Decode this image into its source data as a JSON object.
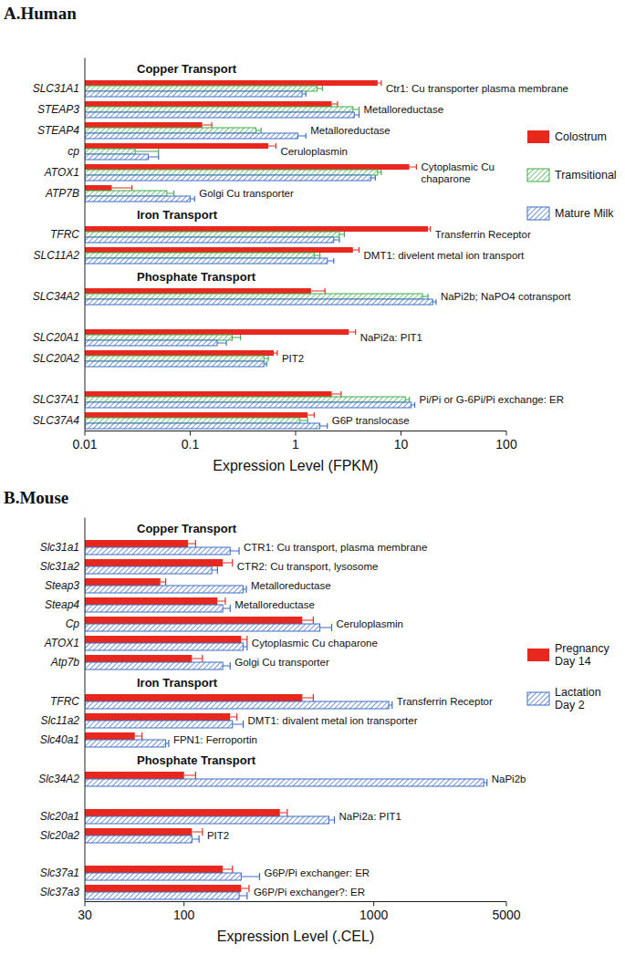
{
  "chart_data": [
    {
      "type": "bar",
      "orientation": "horizontal",
      "log": "x",
      "grid": false,
      "legend": "right",
      "title": "A.Human",
      "x_label": "Expression Level (FPKM)",
      "xlim": [
        0.01,
        100
      ],
      "xticks": [
        0.01,
        0.1,
        1,
        10,
        100
      ],
      "categories": [
        "SLC31A1",
        "STEAP3",
        "STEAP4",
        "cp",
        "ATOX1",
        "ATP7B",
        "TFRC",
        "SLC11A2",
        "SLC34A2",
        "SLC20A1",
        "SLC20A2",
        "SLC37A1",
        "SLC37A4"
      ],
      "descriptions": [
        "Ctr1: Cu transporter plasma membrane",
        "Metalloreductase",
        "Metalloreductase",
        "Ceruloplasmin",
        "Cytoplasmic Cu chaparone",
        "Golgi Cu transporter",
        "Transferrin Receptor",
        "DMT1: divelent metal ion transport",
        "NaPi2b;  NaPO4 cotransport",
        "NaPi2a: PIT1",
        "PIT2",
        "Pi/Pi or G-6Pi/Pi exchange: ER",
        "G6P  translocase"
      ],
      "annotations": [
        {
          "text": "Copper Transport",
          "category": "SLC31A1"
        },
        {
          "text": "Iron Transport",
          "category": "TFRC"
        },
        {
          "text": "Phosphate Transport",
          "category": "SLC34A2"
        }
      ],
      "series": [
        {
          "name": "Colostrum",
          "color": "#e8281e",
          "values": [
            6.0,
            2.2,
            0.13,
            0.55,
            12,
            0.018,
            18,
            3.5,
            1.4,
            3.2,
            0.62,
            2.2,
            1.3
          ],
          "errors": [
            0.5,
            0.3,
            0.03,
            0.1,
            2,
            0.01,
            1,
            0.5,
            0.5,
            0.5,
            0.05,
            0.5,
            0.2
          ]
        },
        {
          "name": "Tramsitional",
          "color": "#3fae49",
          "values": [
            1.6,
            3.5,
            0.42,
            0.03,
            6.0,
            0.06,
            2.6,
            1.5,
            16,
            0.25,
            0.5,
            11,
            1.1
          ],
          "errors": [
            0.2,
            0.5,
            0.05,
            0.02,
            0.5,
            0.01,
            0.3,
            0.2,
            2,
            0.05,
            0.05,
            1,
            0.2
          ]
        },
        {
          "name": "Mature Milk",
          "color": "#3b6cc4",
          "values": [
            1.15,
            3.6,
            1.05,
            0.04,
            5.2,
            0.1,
            2.3,
            2.0,
            20,
            0.18,
            0.5,
            12.5,
            1.7
          ],
          "errors": [
            0.1,
            0.4,
            0.2,
            0.01,
            0.5,
            0.01,
            0.3,
            0.3,
            1.5,
            0.04,
            0.03,
            1,
            0.3
          ]
        }
      ]
    },
    {
      "type": "bar",
      "orientation": "horizontal",
      "log": "x",
      "grid": false,
      "legend": "right",
      "title": "B.Mouse",
      "x_label": "Expression Level (.CEL)",
      "xlim": [
        30,
        5000
      ],
      "xticks": [
        30,
        100,
        1000,
        5000
      ],
      "categories": [
        "Slc31a1",
        "Slc31a2",
        "Steap3",
        "Steap4",
        "Cp",
        "ATOX1",
        "Atp7b",
        "TFRC",
        "Slc11a2",
        "Slc40a1",
        "Slc34A2",
        "Slc20a1",
        "Slc20a2",
        "Slc37a1",
        "Slc37a3"
      ],
      "descriptions": [
        "CTR1: Cu transport, plasma membrane",
        "CTR2: Cu transport, lysosome",
        "Metalloreductase",
        "Metalloreductase",
        "Ceruloplasmin",
        "Cytoplasmic Cu chaparone",
        "Golgi Cu transporter",
        "Transferrin  Receptor",
        "DMT1: divalent metal ion transporter",
        "FPN1: Ferroportin",
        "NaPi2b",
        "NaPi2a: PIT1",
        "PIT2",
        "G6P/Pi exchanger: ER",
        "G6P/Pi exchanger?: ER"
      ],
      "annotations": [
        {
          "text": "Copper Transport",
          "category": "Slc31a1"
        },
        {
          "text": "Iron Transport",
          "category": "TFRC"
        },
        {
          "text": "Phosphate Transport",
          "category": "Slc34A2"
        }
      ],
      "series": [
        {
          "name": "Pregnancy Day 14",
          "color": "#e8281e",
          "values": [
            105,
            160,
            75,
            150,
            420,
            200,
            110,
            420,
            175,
            55,
            100,
            320,
            110,
            160,
            200
          ],
          "errors": [
            10,
            20,
            5,
            15,
            60,
            15,
            15,
            60,
            15,
            5,
            15,
            30,
            15,
            20,
            20
          ]
        },
        {
          "name": "Lactation Day 2",
          "color": "#3b6cc4",
          "values": [
            175,
            140,
            205,
            160,
            520,
            205,
            160,
            1200,
            180,
            80,
            3800,
            580,
            110,
            200,
            195
          ],
          "errors": [
            20,
            10,
            8,
            15,
            80,
            10,
            15,
            50,
            25,
            3,
            150,
            40,
            10,
            50,
            20
          ]
        }
      ]
    }
  ]
}
